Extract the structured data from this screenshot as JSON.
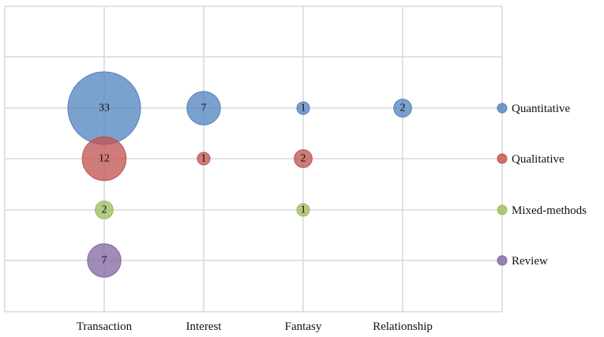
{
  "chart_data": {
    "type": "bubble",
    "title": "",
    "xlabel": "",
    "ylabel": "",
    "categories": [
      "Transaction",
      "Interest",
      "Fantasy",
      "Relationship"
    ],
    "grid": true,
    "legend_position": "right",
    "series": [
      {
        "name": "Quantitative",
        "color": "#4f81bd",
        "values": [
          33,
          7,
          1,
          2
        ]
      },
      {
        "name": "Qualitative",
        "color": "#c0504d",
        "values": [
          12,
          1,
          2,
          null
        ]
      },
      {
        "name": "Mixed-methods",
        "color": "#9bbb59",
        "values": [
          2,
          null,
          1,
          null
        ]
      },
      {
        "name": "Review",
        "color": "#8064a2",
        "values": [
          7,
          null,
          null,
          null
        ]
      }
    ]
  }
}
